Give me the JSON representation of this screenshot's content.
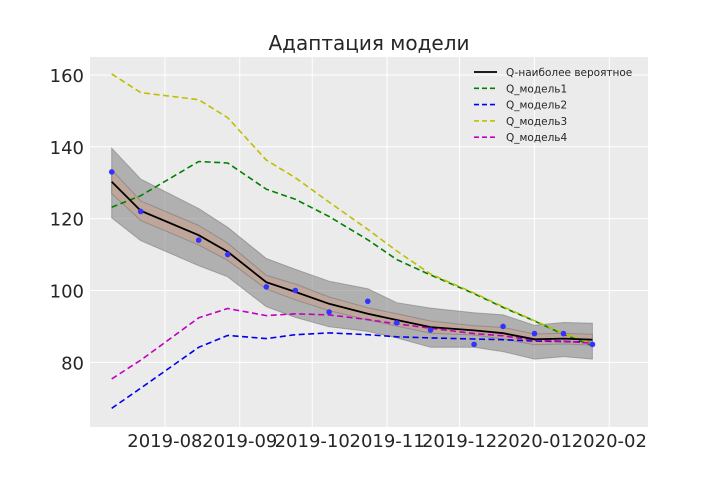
{
  "chart_data": {
    "type": "line",
    "title": "Адаптация модели",
    "xlabel": "",
    "ylabel": "",
    "grid": true,
    "legend_position": "top-right",
    "xlim": [
      "2019-07-01",
      "2020-02-17"
    ],
    "ylim": [
      62,
      165
    ],
    "x_ticks": [
      {
        "date": "2019-08-01",
        "label": "2019-08"
      },
      {
        "date": "2019-09-01",
        "label": "2019-09"
      },
      {
        "date": "2019-10-01",
        "label": "2019-10"
      },
      {
        "date": "2019-11-01",
        "label": "2019-11"
      },
      {
        "date": "2019-12-01",
        "label": "2019-12"
      },
      {
        "date": "2020-01-01",
        "label": "2020-01"
      },
      {
        "date": "2020-02-01",
        "label": "2020-02"
      }
    ],
    "y_ticks": [
      80,
      100,
      120,
      140,
      160
    ],
    "x": [
      "2019-07-10",
      "2019-07-22",
      "2019-08-15",
      "2019-08-27",
      "2019-09-12",
      "2019-09-24",
      "2019-10-08",
      "2019-10-24",
      "2019-11-05",
      "2019-11-19",
      "2019-12-07",
      "2019-12-19",
      "2020-01-01",
      "2020-01-13",
      "2020-01-25"
    ],
    "series": [
      {
        "name": "Q-наиболее вероятное",
        "color": "#000000",
        "style": "solid",
        "values": [
          130.3,
          122.2,
          115.4,
          110.8,
          102.3,
          99.6,
          96.3,
          93.5,
          91.8,
          89.8,
          88.9,
          88.1,
          86.4,
          86.6,
          86.3
        ]
      },
      {
        "name": "Q_модель1",
        "color": "#008000",
        "style": "dashed",
        "values": [
          123.2,
          126.4,
          135.9,
          135.5,
          128.2,
          125.4,
          120.6,
          114.1,
          108.6,
          104.3,
          99.1,
          95.3,
          91.5,
          87.8,
          84.6
        ]
      },
      {
        "name": "Q_модель2",
        "color": "#0000ee",
        "style": "dashed",
        "values": [
          67.2,
          72.8,
          84.2,
          87.5,
          86.6,
          87.7,
          88.2,
          87.7,
          87.1,
          86.8,
          86.5,
          86.3,
          85.9,
          85.8,
          85.6
        ]
      },
      {
        "name": "Q_модель3",
        "color": "#bfbf00",
        "style": "dashed",
        "values": [
          160.3,
          155.1,
          153.1,
          148.1,
          136.3,
          131.4,
          124.6,
          117.0,
          111.0,
          104.6,
          99.3,
          95.5,
          91.6,
          88.1,
          85.1
        ]
      },
      {
        "name": "Q_модель4",
        "color": "#bf00bf",
        "style": "dashed",
        "values": [
          75.4,
          80.6,
          92.4,
          95.0,
          93.0,
          93.5,
          93.2,
          91.9,
          90.7,
          89.5,
          88.0,
          87.4,
          86.1,
          85.9,
          85.3
        ]
      }
    ],
    "observed_points": {
      "color": "#3333ff",
      "values": [
        133.0,
        122.0,
        114.0,
        110.0,
        101.0,
        100.0,
        94.0,
        97.0,
        91.0,
        89.0,
        85.0,
        90.0,
        88.0,
        88.0,
        85.0
      ]
    },
    "bands": [
      {
        "color": "#808080",
        "opacity": 0.55,
        "lower": [
          120.2,
          113.9,
          106.9,
          103.8,
          95.5,
          92.5,
          89.9,
          88.6,
          86.8,
          84.2,
          84.2,
          83.0,
          80.9,
          81.6,
          80.9
        ],
        "upper": [
          139.6,
          131.0,
          122.8,
          117.6,
          108.9,
          105.9,
          102.6,
          100.5,
          96.6,
          95.1,
          93.8,
          93.2,
          90.3,
          91.1,
          90.9
        ]
      },
      {
        "color": "#c8a08c",
        "opacity": 0.6,
        "lower": [
          127.0,
          119.5,
          112.7,
          108.4,
          100.4,
          97.4,
          94.4,
          91.8,
          90.1,
          88.1,
          87.6,
          86.5,
          84.9,
          85.1,
          84.8
        ],
        "upper": [
          133.6,
          124.9,
          118.1,
          113.2,
          104.2,
          101.8,
          98.2,
          95.2,
          93.5,
          91.5,
          90.2,
          89.7,
          87.9,
          88.1,
          87.8
        ]
      }
    ]
  }
}
